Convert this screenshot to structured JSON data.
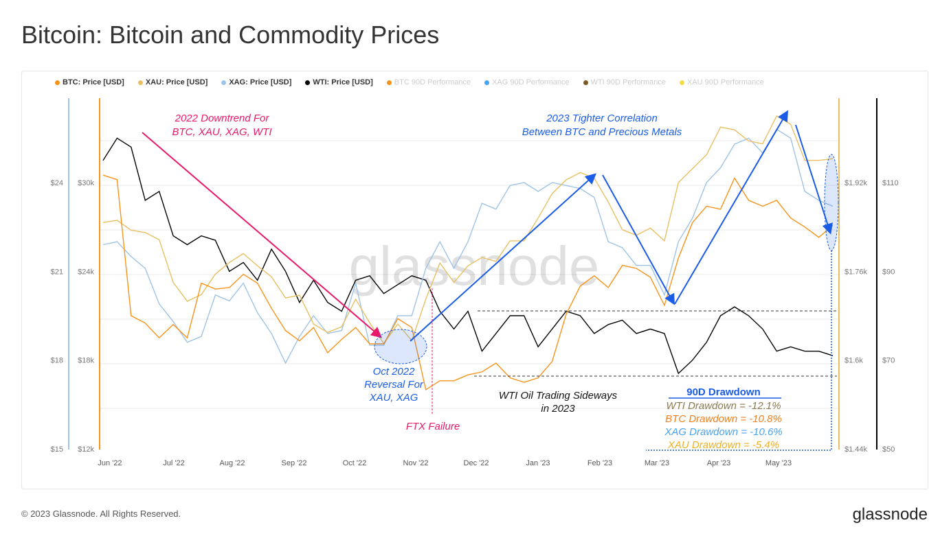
{
  "title": "Bitcoin: Bitcoin and Commodity Prices",
  "footer": "© 2023 Glassnode. All Rights Reserved.",
  "brand": "glassnode",
  "watermark": "glassnode",
  "legend": [
    {
      "label": "BTC: Price [USD]",
      "color": "#f7931a",
      "active": true
    },
    {
      "label": "XAU: Price [USD]",
      "color": "#e8c063",
      "active": true
    },
    {
      "label": "XAG: Price [USD]",
      "color": "#9ec3e6",
      "active": true
    },
    {
      "label": "WTI: Price [USD]",
      "color": "#000000",
      "active": true
    },
    {
      "label": "BTC 90D Performance",
      "color": "#f7931a",
      "active": false
    },
    {
      "label": "XAG 90D Performance",
      "color": "#4aa3f0",
      "active": false
    },
    {
      "label": "WTI 90D Performance",
      "color": "#7a5a20",
      "active": false
    },
    {
      "label": "XAU 90D Performance",
      "color": "#f5dc40",
      "active": false
    }
  ],
  "annotations": {
    "downtrend": [
      "2022 Downtrend For",
      "BTC, XAU, XAG, WTI"
    ],
    "correlation": [
      "2023 Tighter Correlation",
      "Between BTC and Precious Metals"
    ],
    "reversal": [
      "Oct 2022",
      "Reversal For",
      "XAU, XAG"
    ],
    "ftx": "FTX Failure",
    "wti": [
      "WTI Oil Trading Sideways",
      "in 2023"
    ],
    "drawdown_title": "90D Drawdown",
    "drawdowns": [
      {
        "text": "WTI Drawdown = -12.1%",
        "color": "#8a7a50"
      },
      {
        "text": "BTC Drawdown = -10.8%",
        "color": "#f08020"
      },
      {
        "text": "XAG Drawdown = -10.6%",
        "color": "#4aa3f0"
      },
      {
        "text": "XAU Drawdown = -5.4%",
        "color": "#f0b020"
      }
    ]
  },
  "chart_data": {
    "type": "line",
    "title": "Bitcoin: Bitcoin and Commodity Prices",
    "x_ticks": [
      "Jun '22",
      "Jul '22",
      "Aug '22",
      "Sep '22",
      "Oct '22",
      "Nov '22",
      "Dec '22",
      "Jan '23",
      "Feb '23",
      "Mar '23",
      "Apr '23",
      "May '23"
    ],
    "x_start": "2022-06-01",
    "x_step_days": 7,
    "axes": {
      "xag": {
        "ticks": [
          "$15",
          "$18",
          "$21",
          "$24"
        ],
        "range": [
          15,
          24
        ],
        "color": "#9ec3e6"
      },
      "btc": {
        "ticks": [
          "$12k",
          "$18k",
          "$24k",
          "$30k"
        ],
        "range": [
          12,
          30
        ],
        "unit": "k USD",
        "color": "#f7931a"
      },
      "xau": {
        "ticks": [
          "$1.44k",
          "$1.6k",
          "$1.76k",
          "$1.92k"
        ],
        "range": [
          1440,
          1920
        ],
        "color": "#e8c063"
      },
      "wti": {
        "ticks": [
          "$50",
          "$70",
          "$90",
          "$110"
        ],
        "range": [
          50,
          110
        ],
        "color": "#000000"
      }
    },
    "series": [
      {
        "name": "BTC: Price [USD]",
        "axis": "btc",
        "color": "#f7931a",
        "values": [
          30.5,
          30.2,
          21,
          20.5,
          19.5,
          20.4,
          19.5,
          23.2,
          22.8,
          22.9,
          23.8,
          23.2,
          21.5,
          20.0,
          19.3,
          20.2,
          18.5,
          19.4,
          20.2,
          19.1,
          19.1,
          20.8,
          20.2,
          16.0,
          16.6,
          16.6,
          17.0,
          17.2,
          17.8,
          16.8,
          16.5,
          16.8,
          17.9,
          21.1,
          23.0,
          23.7,
          22.9,
          24.4,
          24.2,
          23.6,
          21.7,
          24.9,
          27.3,
          28.4,
          28.2,
          30.3,
          28.8,
          28.4,
          28.8,
          27.6,
          27.0,
          26.3,
          27.1
        ]
      },
      {
        "name": "XAU: Price [USD]",
        "axis": "xau",
        "color": "#e8c063",
        "values": [
          1848,
          1852,
          1834,
          1830,
          1817,
          1740,
          1706,
          1718,
          1755,
          1776,
          1792,
          1770,
          1750,
          1712,
          1717,
          1665,
          1650,
          1660,
          1710,
          1667,
          1630,
          1665,
          1635,
          1710,
          1775,
          1740,
          1770,
          1785,
          1778,
          1815,
          1815,
          1856,
          1900,
          1925,
          1938,
          1928,
          1885,
          1835,
          1825,
          1838,
          1815,
          1920,
          1945,
          1970,
          2020,
          2015,
          1995,
          1990,
          2040,
          2025,
          1960,
          1960,
          1963
        ]
      },
      {
        "name": "XAG: Price [USD]",
        "axis": "xag",
        "color": "#9ec3e6",
        "values": [
          21.9,
          22.0,
          21.5,
          21.1,
          19.9,
          19.3,
          18.6,
          18.8,
          20.2,
          20.0,
          20.6,
          19.6,
          18.9,
          17.9,
          18.8,
          19.5,
          18.9,
          19.0,
          20.6,
          18.5,
          18.5,
          19.5,
          19.5,
          21.1,
          22.0,
          21.1,
          22.0,
          23.3,
          23.1,
          23.9,
          24.0,
          23.7,
          24.0,
          23.9,
          23.8,
          23.5,
          22.0,
          21.8,
          21.2,
          21.2,
          20.2,
          22.0,
          22.8,
          24.0,
          24.5,
          25.3,
          25.5,
          25.0,
          25.8,
          25.5,
          23.7,
          23.4,
          23.2
        ]
      },
      {
        "name": "WTI: Price [USD]",
        "axis": "wti",
        "color": "#000000",
        "values": [
          115,
          120,
          118,
          106,
          108,
          98,
          96,
          98,
          97,
          90,
          92,
          88,
          95,
          90,
          83,
          88,
          83,
          81,
          88,
          89,
          85,
          87,
          89,
          88,
          81,
          77,
          81,
          72,
          76,
          80,
          80,
          73,
          77,
          81,
          80,
          76,
          78,
          79,
          76,
          77,
          76,
          67,
          70,
          74,
          80,
          82,
          80,
          77,
          72,
          73,
          72,
          72,
          71
        ]
      }
    ],
    "grid": true,
    "legend_position": "top"
  }
}
